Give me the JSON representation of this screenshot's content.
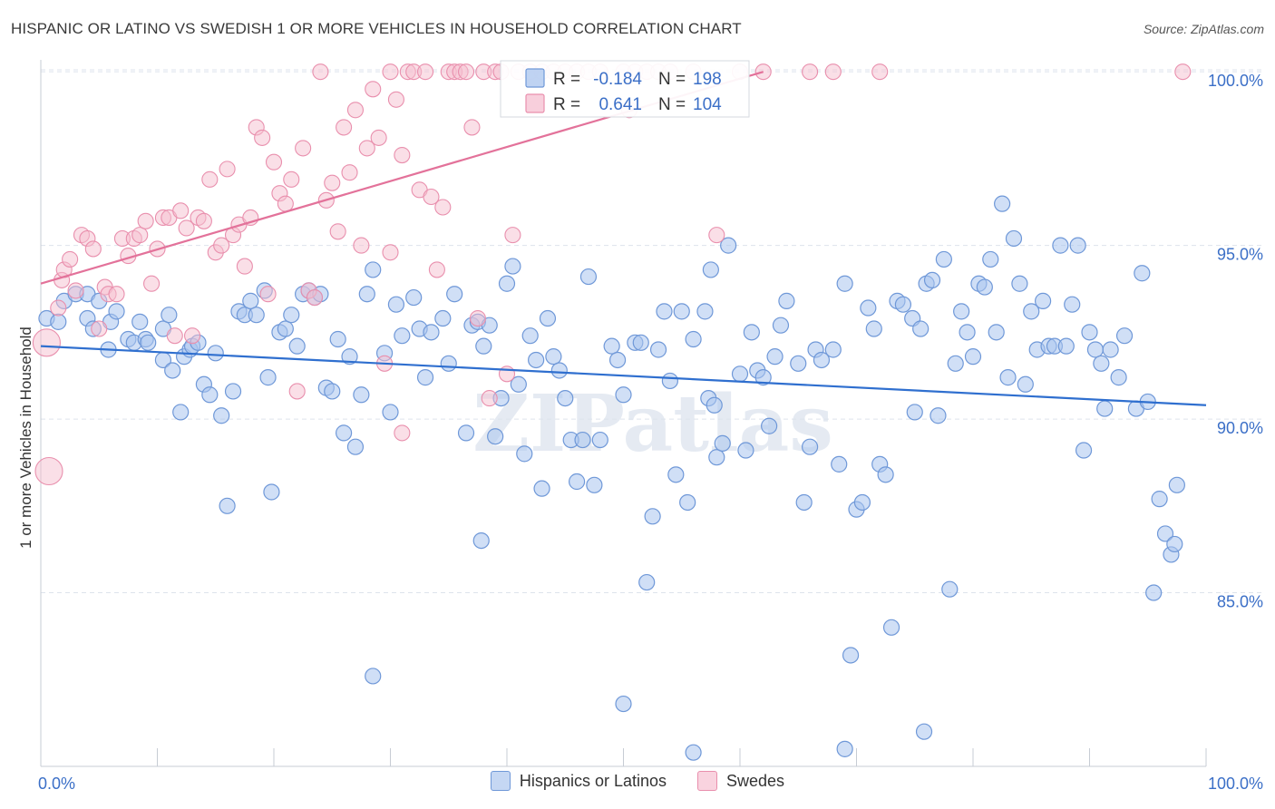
{
  "header": {
    "title": "HISPANIC OR LATINO VS SWEDISH 1 OR MORE VEHICLES IN HOUSEHOLD CORRELATION CHART",
    "source": "Source: ZipAtlas.com"
  },
  "watermark": "ZIPatlas",
  "colors": {
    "blue_fill": "#a9c4ee",
    "blue_stroke": "#6f98d8",
    "blue_line": "#2f6fcf",
    "pink_fill": "#f6bfd0",
    "pink_stroke": "#e98fad",
    "pink_line": "#e3729a",
    "axis_text": "#3b6fc7",
    "grid": "#dde3ec"
  },
  "stats_legend": {
    "rows": [
      {
        "r_label": "R = ",
        "r_value": "-0.184",
        "n_label": "N = ",
        "n_value": "198"
      },
      {
        "r_label": "R = ",
        "r_value": "0.641",
        "n_label": "N = ",
        "n_value": "104"
      }
    ]
  },
  "chart_data": {
    "type": "scatter",
    "title": "HISPANIC OR LATINO VS SWEDISH 1 OR MORE VEHICLES IN HOUSEHOLD CORRELATION CHART",
    "xlabel": "",
    "ylabel": "1 or more Vehicles in Household",
    "xlim": [
      0,
      100
    ],
    "ylim": [
      80,
      100.5
    ],
    "x_tick_labels": [
      "0.0%",
      "100.0%"
    ],
    "y_ticks": [
      85,
      90,
      95,
      100
    ],
    "y_tick_labels": [
      "85.0%",
      "90.0%",
      "95.0%",
      "100.0%"
    ],
    "grid": true,
    "legend": [
      {
        "name": "Hispanics or Latinos",
        "color": "#a9c4ee"
      },
      {
        "name": "Swedes",
        "color": "#f6bfd0"
      }
    ],
    "series": [
      {
        "name": "Hispanics or Latinos",
        "r": -0.184,
        "n": 198,
        "trend": {
          "x": [
            0,
            100
          ],
          "y": [
            92.1,
            90.4
          ]
        },
        "points": [
          [
            0.5,
            92.9
          ],
          [
            1.5,
            92.8
          ],
          [
            2,
            93.4
          ],
          [
            3,
            93.6
          ],
          [
            4,
            93.6
          ],
          [
            4,
            92.9
          ],
          [
            4.5,
            92.6
          ],
          [
            5,
            93.4
          ],
          [
            6,
            92.8
          ],
          [
            6.5,
            93.1
          ],
          [
            5.8,
            92.0
          ],
          [
            7.5,
            92.3
          ],
          [
            8,
            92.2
          ],
          [
            8.5,
            92.8
          ],
          [
            9,
            92.3
          ],
          [
            9.2,
            92.2
          ],
          [
            10.5,
            91.7
          ],
          [
            10.5,
            92.6
          ],
          [
            11,
            93.0
          ],
          [
            11.3,
            91.4
          ],
          [
            12,
            90.2
          ],
          [
            12.3,
            91.8
          ],
          [
            12.8,
            92.0
          ],
          [
            13,
            92.1
          ],
          [
            13.5,
            92.2
          ],
          [
            14,
            91.0
          ],
          [
            14.5,
            90.7
          ],
          [
            15,
            91.9
          ],
          [
            15.5,
            90.1
          ],
          [
            16,
            87.5
          ],
          [
            16.5,
            90.8
          ],
          [
            17,
            93.1
          ],
          [
            17.5,
            93.0
          ],
          [
            18,
            93.4
          ],
          [
            18.5,
            93.0
          ],
          [
            19.2,
            93.7
          ],
          [
            19.5,
            91.2
          ],
          [
            19.8,
            87.9
          ],
          [
            20.5,
            92.5
          ],
          [
            21,
            92.6
          ],
          [
            21.5,
            93.0
          ],
          [
            22,
            92.1
          ],
          [
            22.5,
            93.6
          ],
          [
            23,
            93.7
          ],
          [
            23.5,
            93.5
          ],
          [
            24,
            93.6
          ],
          [
            24.5,
            90.9
          ],
          [
            25,
            90.8
          ],
          [
            25.5,
            92.3
          ],
          [
            26,
            89.6
          ],
          [
            26.5,
            91.8
          ],
          [
            27,
            89.2
          ],
          [
            27.5,
            90.7
          ],
          [
            28,
            93.6
          ],
          [
            28.5,
            94.3
          ],
          [
            28.5,
            82.6
          ],
          [
            29.5,
            91.9
          ],
          [
            30,
            90.2
          ],
          [
            30.5,
            93.3
          ],
          [
            31,
            92.4
          ],
          [
            32,
            93.5
          ],
          [
            32.5,
            92.6
          ],
          [
            33,
            91.2
          ],
          [
            33.5,
            92.5
          ],
          [
            34.5,
            92.9
          ],
          [
            35,
            91.6
          ],
          [
            35.5,
            93.6
          ],
          [
            36.5,
            89.6
          ],
          [
            37,
            92.7
          ],
          [
            37.5,
            92.8
          ],
          [
            37.8,
            86.5
          ],
          [
            38,
            92.1
          ],
          [
            38.5,
            92.7
          ],
          [
            39,
            89.5
          ],
          [
            39.5,
            90.6
          ],
          [
            40,
            93.9
          ],
          [
            40.5,
            94.4
          ],
          [
            41,
            91.0
          ],
          [
            41.5,
            89.0
          ],
          [
            42,
            92.4
          ],
          [
            42.5,
            91.7
          ],
          [
            43,
            88.0
          ],
          [
            43.5,
            92.9
          ],
          [
            44,
            91.8
          ],
          [
            44.5,
            91.4
          ],
          [
            45,
            90.6
          ],
          [
            45.5,
            89.4
          ],
          [
            46,
            88.2
          ],
          [
            46.5,
            89.4
          ],
          [
            47,
            94.1
          ],
          [
            47.5,
            88.1
          ],
          [
            48,
            89.4
          ],
          [
            49,
            92.1
          ],
          [
            49.5,
            91.7
          ],
          [
            50,
            90.7
          ],
          [
            51,
            92.2
          ],
          [
            51.5,
            92.2
          ],
          [
            52,
            85.3
          ],
          [
            52.5,
            87.2
          ],
          [
            53,
            92.0
          ],
          [
            53.5,
            93.1
          ],
          [
            54,
            91.1
          ],
          [
            54.5,
            88.4
          ],
          [
            55,
            93.1
          ],
          [
            55.5,
            87.6
          ],
          [
            56,
            92.3
          ],
          [
            57,
            93.1
          ],
          [
            57.5,
            94.3
          ],
          [
            57.3,
            90.6
          ],
          [
            57.8,
            90.4
          ],
          [
            58,
            88.9
          ],
          [
            58.5,
            89.3
          ],
          [
            59,
            95.0
          ],
          [
            60,
            91.3
          ],
          [
            60.5,
            89.1
          ],
          [
            61,
            92.5
          ],
          [
            61.5,
            91.4
          ],
          [
            62,
            91.2
          ],
          [
            62.5,
            89.8
          ],
          [
            63,
            91.8
          ],
          [
            63.5,
            92.7
          ],
          [
            64,
            93.4
          ],
          [
            65,
            91.6
          ],
          [
            65.5,
            87.6
          ],
          [
            66,
            89.2
          ],
          [
            66.5,
            92.0
          ],
          [
            67,
            91.7
          ],
          [
            68,
            92.0
          ],
          [
            68.5,
            88.7
          ],
          [
            69,
            93.9
          ],
          [
            69.5,
            83.2
          ],
          [
            70,
            87.4
          ],
          [
            70.5,
            87.6
          ],
          [
            71,
            93.2
          ],
          [
            71.5,
            92.6
          ],
          [
            72,
            88.7
          ],
          [
            72.5,
            88.4
          ],
          [
            73,
            84.0
          ],
          [
            73.5,
            93.4
          ],
          [
            74,
            93.3
          ],
          [
            74.8,
            92.9
          ],
          [
            75,
            90.2
          ],
          [
            75.5,
            92.6
          ],
          [
            75.8,
            81.0
          ],
          [
            76,
            93.9
          ],
          [
            76.5,
            94.0
          ],
          [
            77,
            90.1
          ],
          [
            77.5,
            94.6
          ],
          [
            78,
            85.1
          ],
          [
            78.5,
            91.6
          ],
          [
            79,
            93.1
          ],
          [
            79.5,
            92.5
          ],
          [
            80,
            91.8
          ],
          [
            80.5,
            93.9
          ],
          [
            81,
            93.8
          ],
          [
            81.5,
            94.6
          ],
          [
            82,
            92.5
          ],
          [
            82.5,
            96.2
          ],
          [
            83,
            91.2
          ],
          [
            83.5,
            95.2
          ],
          [
            84,
            93.9
          ],
          [
            84.5,
            91.0
          ],
          [
            85,
            93.1
          ],
          [
            85.5,
            92.0
          ],
          [
            86,
            93.4
          ],
          [
            86.5,
            92.1
          ],
          [
            87,
            92.1
          ],
          [
            87.5,
            95.0
          ],
          [
            88,
            92.1
          ],
          [
            88.5,
            93.3
          ],
          [
            89,
            95.0
          ],
          [
            89.5,
            89.1
          ],
          [
            90,
            92.5
          ],
          [
            90.5,
            92.0
          ],
          [
            91,
            91.6
          ],
          [
            91.3,
            90.3
          ],
          [
            91.8,
            92.0
          ],
          [
            92.5,
            91.2
          ],
          [
            93,
            92.4
          ],
          [
            94,
            90.3
          ],
          [
            94.5,
            94.2
          ],
          [
            95,
            90.5
          ],
          [
            95.5,
            85.0
          ],
          [
            96,
            87.7
          ],
          [
            96.5,
            86.7
          ],
          [
            97,
            86.1
          ],
          [
            97.3,
            86.4
          ],
          [
            97.5,
            88.1
          ],
          [
            50,
            81.8
          ],
          [
            56,
            80.4
          ],
          [
            69,
            80.5
          ]
        ]
      },
      {
        "name": "Swedes",
        "r": 0.641,
        "n": 104,
        "trend": {
          "x": [
            0,
            62
          ],
          "y": [
            93.9,
            100
          ]
        },
        "points": [
          [
            0.5,
            92.2
          ],
          [
            0.7,
            88.5
          ],
          [
            1.5,
            93.2
          ],
          [
            1.8,
            94.0
          ],
          [
            2,
            94.3
          ],
          [
            2.5,
            94.6
          ],
          [
            3,
            93.7
          ],
          [
            3.5,
            95.3
          ],
          [
            4,
            95.2
          ],
          [
            4.5,
            94.9
          ],
          [
            5,
            92.6
          ],
          [
            5.5,
            93.8
          ],
          [
            5.8,
            93.6
          ],
          [
            6.5,
            93.6
          ],
          [
            7,
            95.2
          ],
          [
            7.5,
            94.7
          ],
          [
            8,
            95.2
          ],
          [
            8.5,
            95.3
          ],
          [
            9,
            95.7
          ],
          [
            9.5,
            93.9
          ],
          [
            10,
            94.9
          ],
          [
            10.5,
            95.8
          ],
          [
            11,
            95.8
          ],
          [
            11.5,
            92.4
          ],
          [
            12,
            96.0
          ],
          [
            12.5,
            95.5
          ],
          [
            13,
            92.4
          ],
          [
            13.5,
            95.8
          ],
          [
            14,
            95.7
          ],
          [
            14.5,
            96.9
          ],
          [
            15,
            94.8
          ],
          [
            15.5,
            95.0
          ],
          [
            16,
            97.2
          ],
          [
            16.5,
            95.3
          ],
          [
            17,
            95.6
          ],
          [
            17.5,
            94.4
          ],
          [
            18,
            95.8
          ],
          [
            18.5,
            98.4
          ],
          [
            19,
            98.1
          ],
          [
            19.5,
            93.6
          ],
          [
            20,
            97.4
          ],
          [
            20.5,
            96.5
          ],
          [
            21,
            96.2
          ],
          [
            21.5,
            96.9
          ],
          [
            22,
            90.8
          ],
          [
            22.5,
            97.8
          ],
          [
            23,
            93.7
          ],
          [
            23.5,
            93.5
          ],
          [
            24,
            100
          ],
          [
            24.5,
            96.3
          ],
          [
            25,
            96.8
          ],
          [
            25.5,
            95.4
          ],
          [
            26,
            98.4
          ],
          [
            26.5,
            97.1
          ],
          [
            27,
            98.9
          ],
          [
            27.5,
            95.0
          ],
          [
            28,
            97.8
          ],
          [
            28.5,
            99.5
          ],
          [
            29,
            98.1
          ],
          [
            29.5,
            91.6
          ],
          [
            30,
            100
          ],
          [
            30.5,
            99.2
          ],
          [
            31,
            97.6
          ],
          [
            31.5,
            100
          ],
          [
            32,
            100
          ],
          [
            32.5,
            96.6
          ],
          [
            33,
            100
          ],
          [
            33.5,
            96.4
          ],
          [
            34,
            94.3
          ],
          [
            34.5,
            96.1
          ],
          [
            35,
            100
          ],
          [
            35.5,
            100
          ],
          [
            36,
            100
          ],
          [
            36.5,
            100
          ],
          [
            37,
            98.4
          ],
          [
            37.5,
            92.9
          ],
          [
            38,
            100
          ],
          [
            38.5,
            90.6
          ],
          [
            39,
            100
          ],
          [
            39.5,
            100
          ],
          [
            40,
            91.3
          ],
          [
            40.5,
            95.3
          ],
          [
            41,
            100
          ],
          [
            42,
            100
          ],
          [
            43,
            100
          ],
          [
            44,
            100
          ],
          [
            45,
            100
          ],
          [
            46,
            100
          ],
          [
            47,
            100
          ],
          [
            48,
            100
          ],
          [
            50,
            100
          ],
          [
            50.5,
            98.9
          ],
          [
            51,
            100
          ],
          [
            52,
            100
          ],
          [
            53,
            100
          ],
          [
            54,
            100
          ],
          [
            56,
            100
          ],
          [
            58,
            95.3
          ],
          [
            60,
            100
          ],
          [
            62,
            100
          ],
          [
            66,
            100
          ],
          [
            68,
            100
          ],
          [
            72,
            100
          ],
          [
            98,
            100
          ],
          [
            31,
            89.6
          ],
          [
            30,
            94.8
          ]
        ]
      }
    ]
  },
  "bottom_legend": {
    "items": [
      {
        "label": "Hispanics or Latinos"
      },
      {
        "label": "Swedes"
      }
    ]
  }
}
